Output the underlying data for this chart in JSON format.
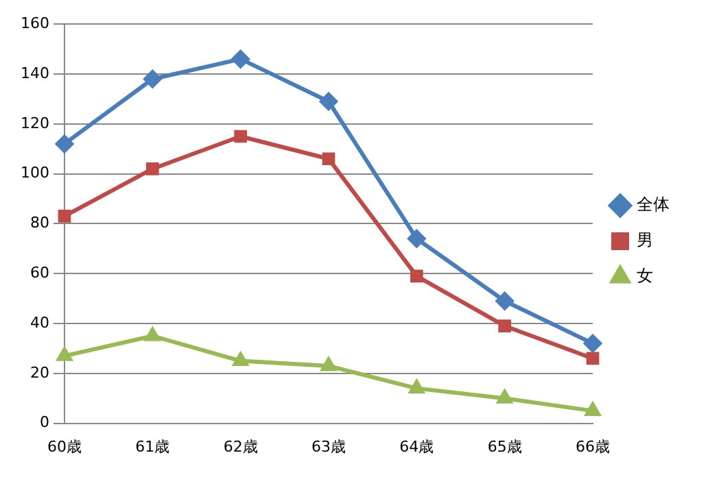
{
  "chart_data": {
    "type": "line",
    "categories": [
      "60歳",
      "61歳",
      "62歳",
      "63歳",
      "64歳",
      "65歳",
      "66歳"
    ],
    "series": [
      {
        "name": "全体",
        "color": "#4a7ebb",
        "marker": "diamond",
        "values": [
          112,
          138,
          146,
          129,
          74,
          49,
          32
        ]
      },
      {
        "name": "男",
        "color": "#be4b48",
        "marker": "square",
        "values": [
          83,
          102,
          115,
          106,
          59,
          39,
          26
        ]
      },
      {
        "name": "女",
        "color": "#98b954",
        "marker": "triangle",
        "values": [
          27,
          35,
          25,
          23,
          14,
          10,
          5
        ]
      }
    ],
    "ylim": [
      0,
      160
    ],
    "yticks": [
      0,
      20,
      40,
      60,
      80,
      100,
      120,
      140,
      160
    ],
    "grid": "y",
    "legend": "right"
  }
}
